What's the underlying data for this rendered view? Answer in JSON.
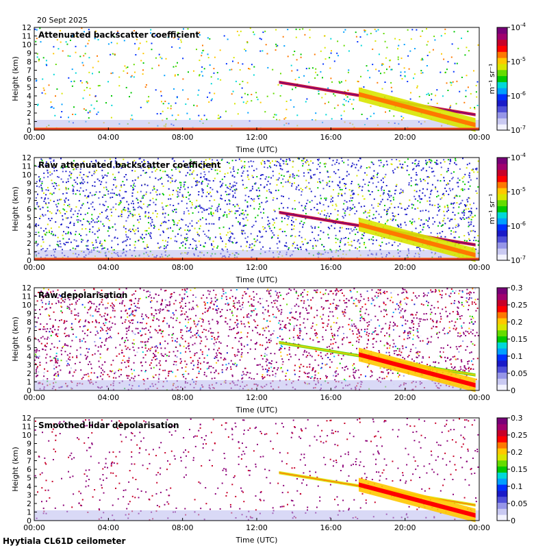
{
  "date_label": "20 Sept 2025",
  "footer_label": "Hyytiala CL61D ceilometer",
  "colormap": [
    "#f2f2ff",
    "#c9c9f2",
    "#9696e8",
    "#5050d8",
    "#1a1ac8",
    "#0030ff",
    "#00a0ff",
    "#00d8d8",
    "#00c800",
    "#64dc00",
    "#d8e600",
    "#ffc800",
    "#ff7800",
    "#ff0000",
    "#c80028",
    "#a0006e",
    "#780078"
  ],
  "chart_data": [
    {
      "type": "heatmap",
      "title": "Attenuated backscatter coefficient",
      "xlabel": "Time (UTC)",
      "ylabel": "Height (km)",
      "x_ticks": [
        "00:00",
        "04:00",
        "08:00",
        "12:00",
        "16:00",
        "20:00",
        "00:00"
      ],
      "xlim_hours": [
        0,
        24
      ],
      "y_ticks": [
        "0",
        "1",
        "2",
        "3",
        "4",
        "5",
        "6",
        "7",
        "8",
        "9",
        "10",
        "11",
        "12"
      ],
      "ylim_km": [
        0,
        12
      ],
      "colorbar": {
        "scale": "log",
        "ticks": [
          "10^-7",
          "10^-6",
          "10^-5",
          "10^-4"
        ],
        "tick_base": "10",
        "tick_exps": [
          "-7",
          "-6",
          "-5",
          "-4"
        ],
        "units": "m⁻¹ sr⁻¹"
      },
      "noise": "sparse",
      "layers": [
        {
          "t": 13.2,
          "h": 5.6,
          "t2": 23.8,
          "h2": 1.8,
          "thick": 0.35,
          "level": 0.85
        },
        {
          "t": 17.5,
          "h": 4.2,
          "t2": 23.8,
          "h2": 0.6,
          "thick": 1.6,
          "level": 0.6
        },
        {
          "t": 0.0,
          "h": 0.15,
          "t2": 24.0,
          "h2": 0.15,
          "thick": 0.3,
          "level": 0.75
        }
      ]
    },
    {
      "type": "heatmap",
      "title": "Raw attenuated backscatter coefficient",
      "xlabel": "Time (UTC)",
      "ylabel": "Height (km)",
      "x_ticks": [
        "00:00",
        "04:00",
        "08:00",
        "12:00",
        "16:00",
        "20:00",
        "00:00"
      ],
      "xlim_hours": [
        0,
        24
      ],
      "y_ticks": [
        "0",
        "1",
        "2",
        "3",
        "4",
        "5",
        "6",
        "7",
        "8",
        "9",
        "10",
        "11",
        "12"
      ],
      "ylim_km": [
        0,
        12
      ],
      "colorbar": {
        "scale": "log",
        "ticks": [
          "10^-7",
          "10^-6",
          "10^-5",
          "10^-4"
        ],
        "tick_base": "10",
        "tick_exps": [
          "-7",
          "-6",
          "-5",
          "-4"
        ],
        "units": "m⁻¹ sr⁻¹"
      },
      "noise": "dense-blue",
      "layers": [
        {
          "t": 13.2,
          "h": 5.6,
          "t2": 23.8,
          "h2": 1.8,
          "thick": 0.35,
          "level": 0.85
        },
        {
          "t": 17.5,
          "h": 4.2,
          "t2": 23.8,
          "h2": 0.6,
          "thick": 1.6,
          "level": 0.6
        },
        {
          "t": 0.0,
          "h": 0.15,
          "t2": 24.0,
          "h2": 0.15,
          "thick": 0.3,
          "level": 0.75
        }
      ]
    },
    {
      "type": "heatmap",
      "title": "Raw depolarisation",
      "xlabel": "Time (UTC)",
      "ylabel": "Height (km)",
      "x_ticks": [
        "00:00",
        "04:00",
        "08:00",
        "12:00",
        "16:00",
        "20:00",
        "00:00"
      ],
      "xlim_hours": [
        0,
        24
      ],
      "y_ticks": [
        "0",
        "1",
        "2",
        "3",
        "4",
        "5",
        "6",
        "7",
        "8",
        "9",
        "10",
        "11",
        "12"
      ],
      "ylim_km": [
        0,
        12
      ],
      "colorbar": {
        "scale": "linear",
        "ticks": [
          "0",
          "0.05",
          "0.1",
          "0.15",
          "0.2",
          "0.25",
          "0.3"
        ]
      },
      "noise": "dense-purple",
      "layers": [
        {
          "t": 13.2,
          "h": 5.6,
          "t2": 23.8,
          "h2": 1.8,
          "thick": 0.35,
          "level": 0.55
        },
        {
          "t": 17.5,
          "h": 4.2,
          "t2": 23.8,
          "h2": 0.6,
          "thick": 1.6,
          "level": 0.7
        }
      ]
    },
    {
      "type": "heatmap",
      "title": "Smoothed lidar depolarisation",
      "xlabel": "Time (UTC)",
      "ylabel": "Height (km)",
      "x_ticks": [
        "00:00",
        "04:00",
        "08:00",
        "12:00",
        "16:00",
        "20:00",
        "00:00"
      ],
      "xlim_hours": [
        0,
        24
      ],
      "y_ticks": [
        "0",
        "1",
        "2",
        "3",
        "4",
        "5",
        "6",
        "7",
        "8",
        "9",
        "10",
        "11",
        "12"
      ],
      "ylim_km": [
        0,
        12
      ],
      "colorbar": {
        "scale": "linear",
        "ticks": [
          "0",
          "0.05",
          "0.1",
          "0.15",
          "0.2",
          "0.25",
          "0.3"
        ]
      },
      "noise": "sparse-purple",
      "layers": [
        {
          "t": 13.2,
          "h": 5.6,
          "t2": 23.8,
          "h2": 1.8,
          "thick": 0.35,
          "level": 0.6
        },
        {
          "t": 17.5,
          "h": 4.2,
          "t2": 23.8,
          "h2": 0.6,
          "thick": 1.6,
          "level": 0.7
        }
      ]
    }
  ]
}
